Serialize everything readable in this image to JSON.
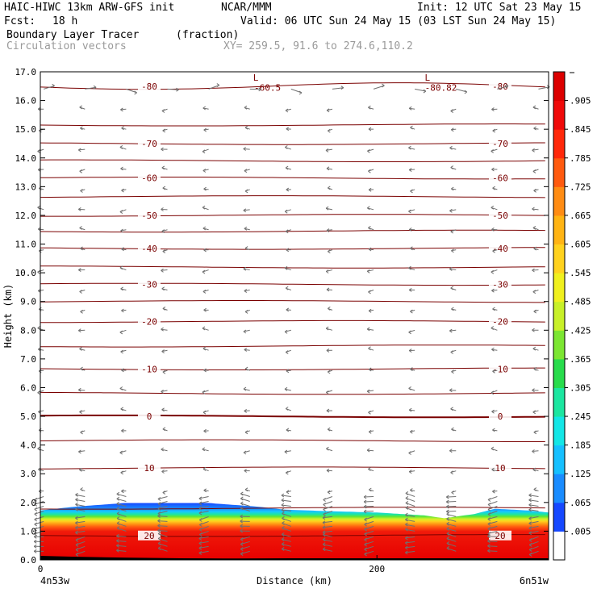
{
  "header": {
    "title_left": "HAIC-HIWC 13km ARW-GFS init",
    "org": "NCAR/MMM",
    "init": "Init: 12 UTC Sat 23 May 15",
    "fcst_label": "Fcst:",
    "fcst_value": "18 h",
    "valid": "Valid: 06 UTC Sun 24 May 15 (03 LST Sun 24 May 15)",
    "field_name": "Boundary Layer Tracer",
    "field_units": "(fraction)",
    "vector_name": "Circulation vectors",
    "xy_info": "XY= 259.5, 91.6 to 274.6,110.2"
  },
  "chart_data": {
    "type": "heatmap",
    "xlabel": "Distance (km)",
    "ylabel": "Height (km)",
    "xlim": [
      0,
      302
    ],
    "ylim": [
      0,
      17
    ],
    "x_ticks": [
      {
        "value": 0,
        "label": "0"
      },
      {
        "value": 200,
        "label": "200"
      }
    ],
    "x_end_labels": {
      "left": "4n53w",
      "right": "6n51w"
    },
    "y_ticks": [
      "0.0",
      "1.0",
      "2.0",
      "3.0",
      "4.0",
      "5.0",
      "6.0",
      "7.0",
      "8.0",
      "9.0",
      "10.0",
      "11.0",
      "12.0",
      "13.0",
      "14.0",
      "15.0",
      "16.0",
      "17.0"
    ],
    "colorbar": {
      "labels": [
        ".005",
        ".065",
        ".125",
        ".185",
        ".245",
        ".305",
        ".365",
        ".425",
        ".485",
        ".545",
        ".605",
        ".665",
        ".725",
        ".785",
        ".845",
        ".905"
      ],
      "colors": [
        "#ffffff",
        "#1648ff",
        "#1a8cff",
        "#16c0ff",
        "#14e6e6",
        "#1ce6a0",
        "#28dc4c",
        "#7ce632",
        "#c8f028",
        "#f0f01e",
        "#ffd21e",
        "#ffb414",
        "#ff8c14",
        "#ff5a0f",
        "#ff280a",
        "#f00a0a",
        "#dc0000"
      ]
    },
    "tracer_top_km": [
      {
        "x": 0,
        "z": 1.72
      },
      {
        "x": 20,
        "z": 1.85
      },
      {
        "x": 50,
        "z": 1.98
      },
      {
        "x": 100,
        "z": 1.98
      },
      {
        "x": 130,
        "z": 1.85
      },
      {
        "x": 145,
        "z": 1.75
      },
      {
        "x": 170,
        "z": 1.7
      },
      {
        "x": 200,
        "z": 1.65
      },
      {
        "x": 228,
        "z": 1.55
      },
      {
        "x": 240,
        "z": 1.45
      },
      {
        "x": 258,
        "z": 1.6
      },
      {
        "x": 270,
        "z": 1.78
      },
      {
        "x": 290,
        "z": 1.72
      },
      {
        "x": 302,
        "z": 1.65
      }
    ],
    "contour_levels_km": [
      {
        "z": 0.85,
        "label": "20"
      },
      {
        "z": 1.8,
        "label": ""
      },
      {
        "z": 3.2,
        "label": "10"
      },
      {
        "z": 4.15,
        "label": ""
      },
      {
        "z": 5.0,
        "label": "0"
      },
      {
        "z": 5.8,
        "label": ""
      },
      {
        "z": 6.65,
        "label": "-10"
      },
      {
        "z": 7.45,
        "label": ""
      },
      {
        "z": 8.3,
        "label": "-20"
      },
      {
        "z": 9.0,
        "label": ""
      },
      {
        "z": 9.6,
        "label": "-30"
      },
      {
        "z": 10.2,
        "label": ""
      },
      {
        "z": 10.85,
        "label": "-40"
      },
      {
        "z": 11.45,
        "label": ""
      },
      {
        "z": 12.0,
        "label": "-50"
      },
      {
        "z": 12.65,
        "label": ""
      },
      {
        "z": 13.3,
        "label": "-60"
      },
      {
        "z": 13.9,
        "label": ""
      },
      {
        "z": 14.5,
        "label": "-70"
      },
      {
        "z": 15.15,
        "label": ""
      },
      {
        "z": 16.5,
        "label": "-80"
      }
    ],
    "annotations": [
      {
        "text": "-60.5",
        "x": 135,
        "z": 16.45
      },
      {
        "text": "-80.82",
        "x": 238,
        "z": 16.45
      },
      {
        "text": "L",
        "x": 128,
        "z": 16.8
      },
      {
        "text": "L",
        "x": 230,
        "z": 16.8
      }
    ]
  }
}
